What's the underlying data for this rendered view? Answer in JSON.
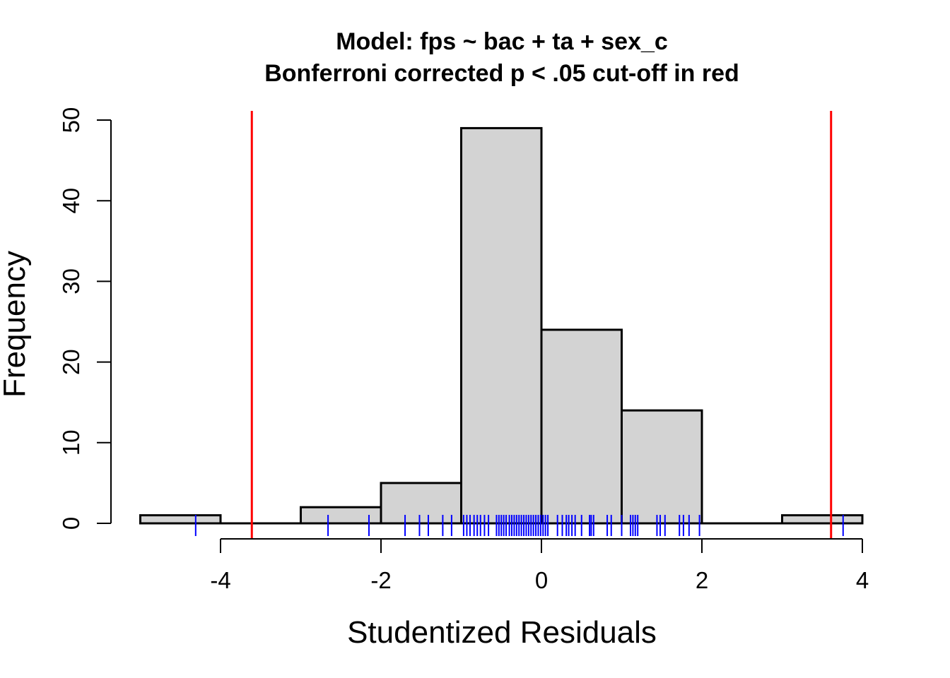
{
  "chart_data": {
    "type": "bar",
    "title": "Model: fps ~ bac + ta + sex_c",
    "subtitle": "Bonferroni corrected p < .05 cut-off in red",
    "xlabel": "Studentized Residuals",
    "ylabel": "Frequency",
    "xlim": [
      -5,
      4
    ],
    "ylim": [
      0,
      50
    ],
    "x_ticks": [
      -4,
      -2,
      0,
      2,
      4
    ],
    "y_ticks": [
      0,
      10,
      20,
      30,
      40,
      50
    ],
    "bins": [
      {
        "start": -5,
        "end": -4,
        "count": 1
      },
      {
        "start": -4,
        "end": -3,
        "count": 0
      },
      {
        "start": -3,
        "end": -2,
        "count": 2
      },
      {
        "start": -2,
        "end": -1,
        "count": 5
      },
      {
        "start": -1,
        "end": 0,
        "count": 49
      },
      {
        "start": 0,
        "end": 1,
        "count": 24
      },
      {
        "start": 1,
        "end": 2,
        "count": 14
      },
      {
        "start": 2,
        "end": 3,
        "count": 0
      },
      {
        "start": 3,
        "end": 4,
        "count": 1
      }
    ],
    "cutoffs": [
      -3.61,
      3.61
    ],
    "rug": [
      -4.31,
      -2.66,
      -2.15,
      -1.7,
      -1.52,
      -1.41,
      -1.23,
      -1.12,
      -0.97,
      -0.93,
      -0.89,
      -0.84,
      -0.8,
      -0.76,
      -0.71,
      -0.66,
      -0.56,
      -0.53,
      -0.5,
      -0.47,
      -0.44,
      -0.4,
      -0.37,
      -0.34,
      -0.31,
      -0.28,
      -0.25,
      -0.22,
      -0.19,
      -0.16,
      -0.13,
      -0.1,
      -0.07,
      -0.04,
      -0.01,
      0.02,
      0.05,
      0.08,
      0.2,
      0.26,
      0.31,
      0.34,
      0.38,
      0.42,
      0.5,
      0.6,
      0.62,
      0.65,
      0.82,
      0.87,
      1.0,
      1.11,
      1.14,
      1.17,
      1.2,
      1.44,
      1.48,
      1.54,
      1.72,
      1.77,
      1.84,
      1.97,
      3.76
    ],
    "colors": {
      "bar_fill": "#d3d3d3",
      "bar_stroke": "#000000",
      "cutoff": "#ff0000",
      "rug": "#0000ff"
    }
  }
}
